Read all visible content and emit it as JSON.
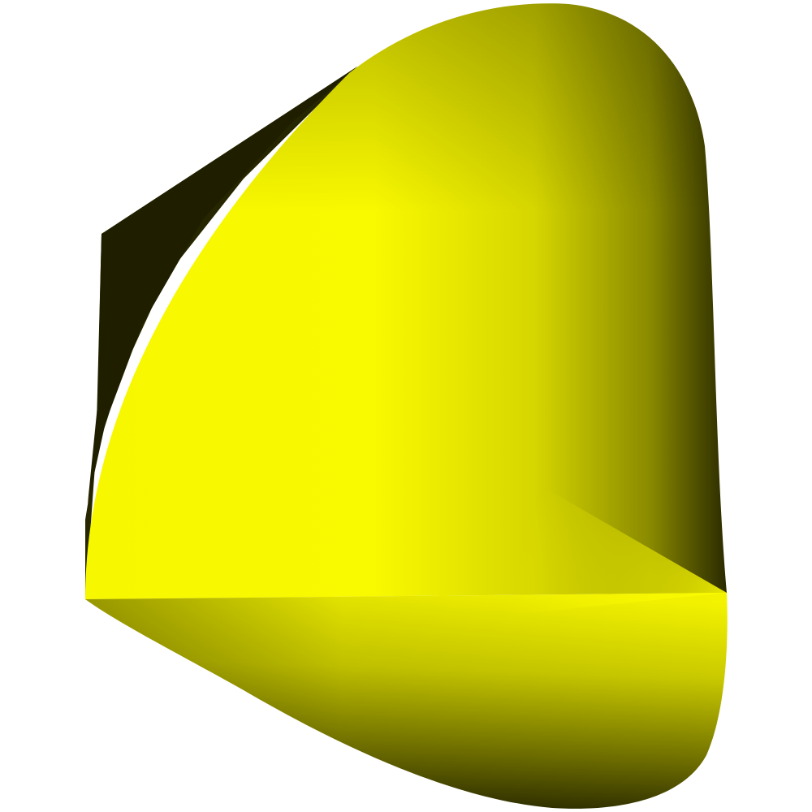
{
  "scene": {
    "background_color": "#ffffff",
    "object": "cone",
    "colors": {
      "highlight": "#f9f900",
      "base": "#e8e800",
      "mid": "#b0b000",
      "shadow": "#262600",
      "dark": "#2a2a00"
    }
  }
}
